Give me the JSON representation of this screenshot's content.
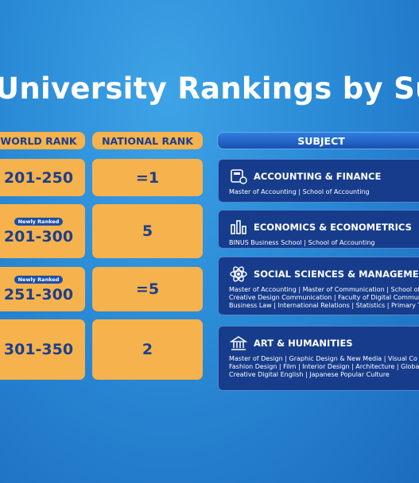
{
  "header": {
    "title": "University Rankings by Su"
  },
  "table": {
    "columns": [
      "WORLD RANK",
      "NATIONAL RANK",
      "SUBJECT"
    ],
    "rows": [
      {
        "world_rank": "201-250",
        "national_rank": "=1",
        "subject": "ACCOUNTING & FINANCE",
        "programs": [
          "Master of Accounting | School of Accounting"
        ]
      },
      {
        "badge": "Newly Ranked",
        "world_rank": "201-300",
        "national_rank": "5",
        "subject": "ECONOMICS & ECONOMETRICS",
        "programs": [
          "BINUS Business School | School of Accounting"
        ]
      },
      {
        "badge": "Newly Ranked",
        "world_rank": "251-300",
        "national_rank": "=5",
        "subject": "SOCIAL SCIENCES &  MANAGEMENT",
        "programs": [
          "Master of Accounting | Master of Communication | School of Ac",
          "Creative Design Communication | Faculty of Digital Communica",
          "Business Law | International Relations | Statistics | Primary Tea"
        ]
      },
      {
        "world_rank": "301-350",
        "national_rank": "2",
        "subject": "ART & HUMANITIES",
        "programs": [
          "Master of Design | Graphic Design & New Media | Visual Co",
          "Fashion Design | Film | Interior Design | Architecture | Globa",
          "Creative Digital English | Japanese Popular Culture"
        ]
      }
    ]
  }
}
